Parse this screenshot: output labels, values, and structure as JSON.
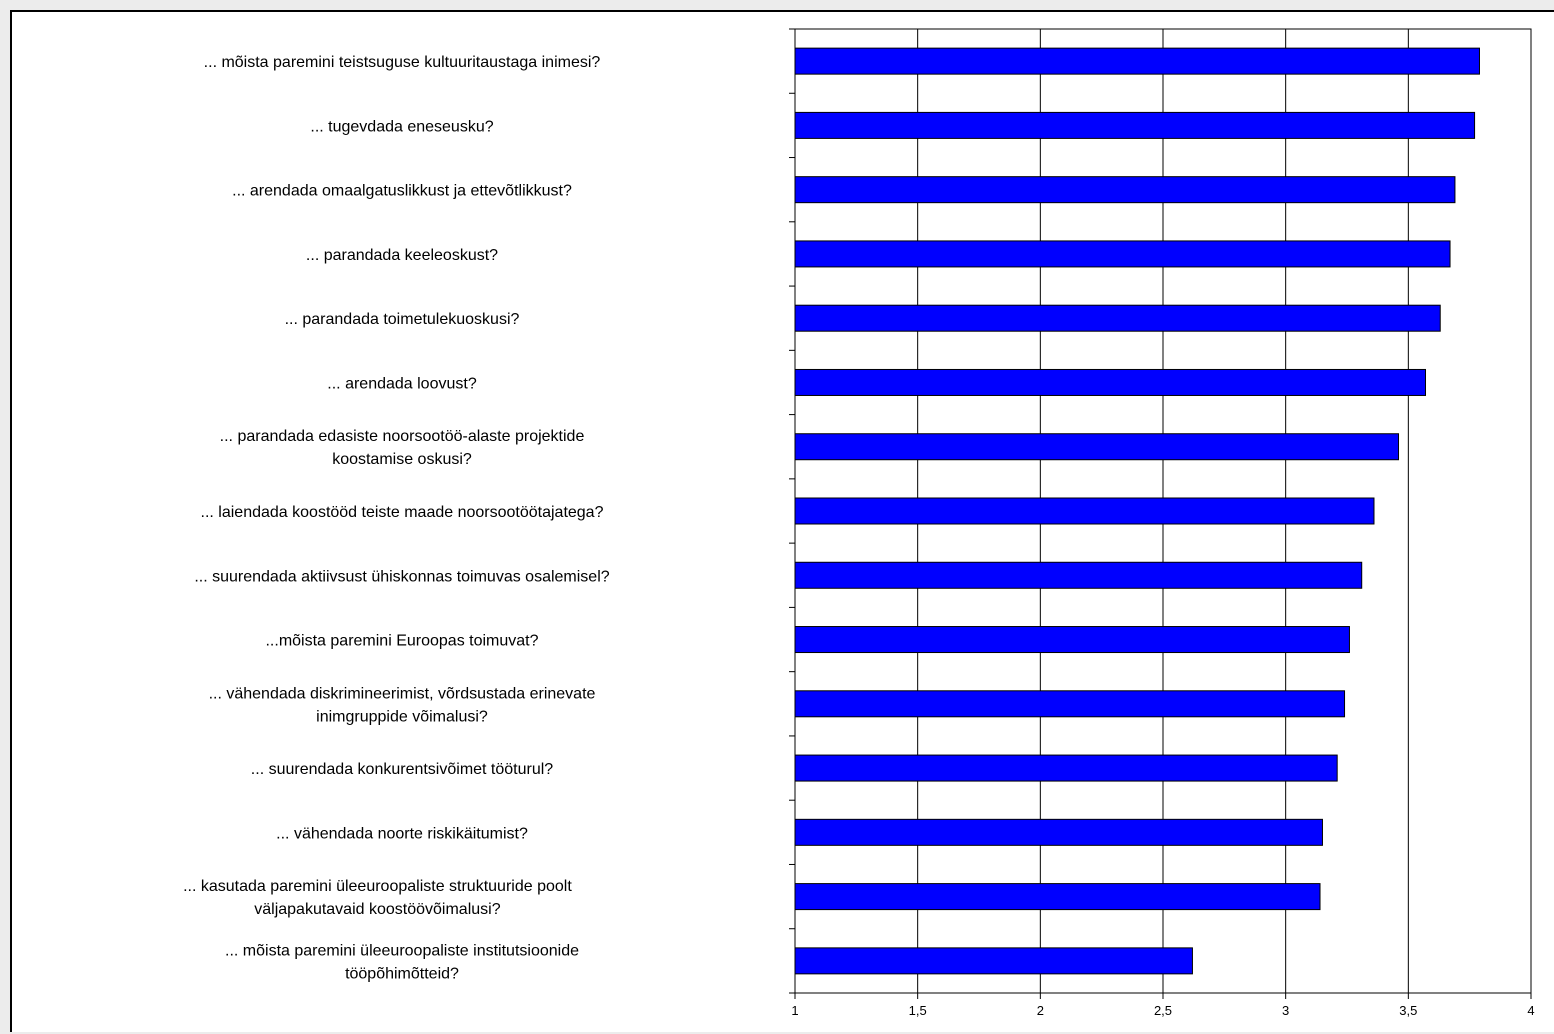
{
  "chart_data": {
    "type": "bar",
    "orientation": "horizontal",
    "categories": [
      [
        "... mõista paremini teistsuguse kultuuritaustaga inimesi?"
      ],
      [
        "... tugevdada eneseusku?"
      ],
      [
        "... arendada omaalgatuslikkust ja ettevõtlikkust?"
      ],
      [
        "... parandada keeleoskust?"
      ],
      [
        "... parandada toimetulekuoskusi?"
      ],
      [
        "... arendada loovust?"
      ],
      [
        "... parandada edasiste noorsootöö-alaste projektide",
        "koostamise oskusi?"
      ],
      [
        "... laiendada koostööd teiste maade noorsootöötajatega?"
      ],
      [
        "... suurendada aktiivsust ühiskonnas toimuvas osalemisel?"
      ],
      [
        "...mõista paremini Euroopas toimuvat?"
      ],
      [
        "... vähendada diskrimineerimist, võrdsustada erinevate",
        "inimgruppide võimalusi?"
      ],
      [
        "... suurendada konkurentsivõimet tööturul?"
      ],
      [
        "... vähendada noorte riskikäitumist?"
      ],
      [
        "... kasutada paremini üleeuroopaliste struktuuride poolt",
        "väljapakutavaid koostöövõimalusi?"
      ],
      [
        "... mõista paremini üleeuroopaliste institutsioonide",
        "tööpõhimõtteid?"
      ]
    ],
    "values": [
      3.79,
      3.77,
      3.69,
      3.67,
      3.63,
      3.57,
      3.46,
      3.36,
      3.31,
      3.26,
      3.24,
      3.21,
      3.15,
      3.14,
      2.62
    ],
    "xlim": [
      1,
      4
    ],
    "x_ticks": [
      "1",
      "1,5",
      "2",
      "2,5",
      "3",
      "3,5",
      "4"
    ],
    "x_tick_values": [
      1,
      1.5,
      2,
      2.5,
      3,
      3.5,
      4
    ],
    "grid": "vertical",
    "bar_color": "#0000FF",
    "bar_edge_color": "#000000",
    "legend": "none"
  }
}
